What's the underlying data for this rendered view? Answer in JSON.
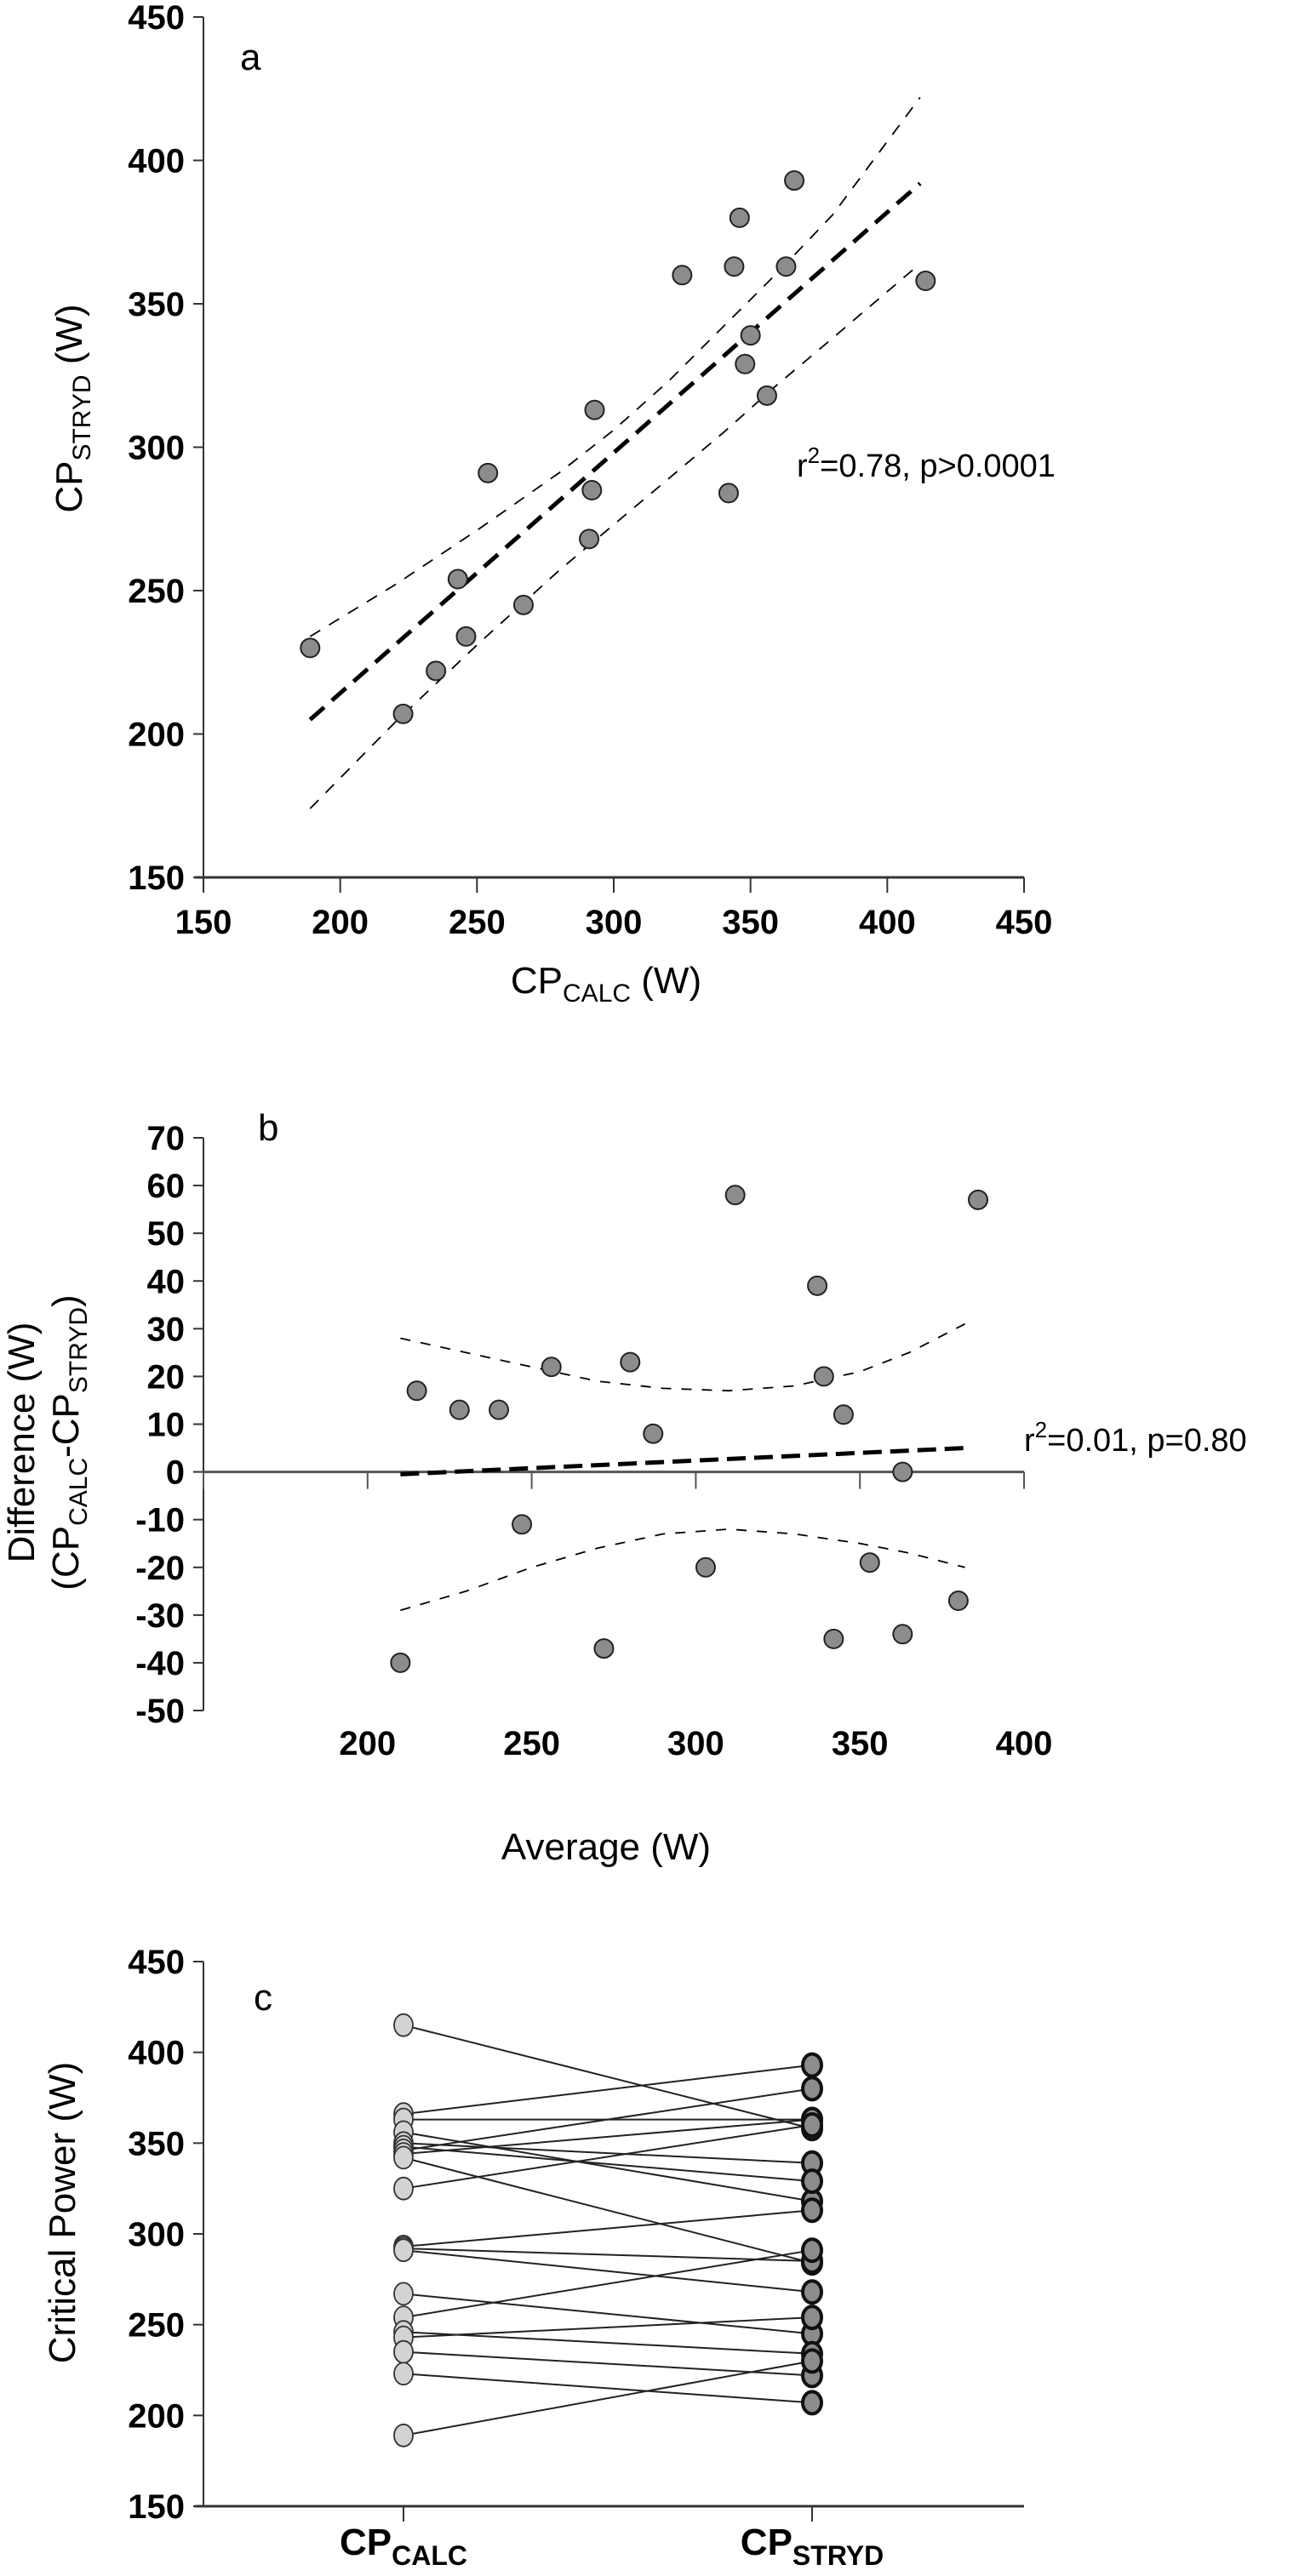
{
  "chart_data": [
    {
      "panel": "a",
      "type": "scatter",
      "title": "",
      "xlabel": "CP",
      "xlabel_sub": "CALC",
      "xlabel_suffix": " (W)",
      "ylabel": "CP",
      "ylabel_sub": "STRYD",
      "ylabel_suffix": " (W)",
      "xlim": [
        150,
        450
      ],
      "ylim": [
        150,
        450
      ],
      "xticks": [
        150,
        200,
        250,
        300,
        350,
        400,
        450
      ],
      "yticks": [
        150,
        200,
        250,
        300,
        350,
        400,
        450
      ],
      "grid": false,
      "annotation": {
        "prefix": "r",
        "sup": "2",
        "text": "=0.78, p>0.0001"
      },
      "points": [
        {
          "x": 189,
          "y": 230
        },
        {
          "x": 223,
          "y": 207
        },
        {
          "x": 235,
          "y": 222
        },
        {
          "x": 243,
          "y": 254
        },
        {
          "x": 246,
          "y": 234
        },
        {
          "x": 254,
          "y": 291
        },
        {
          "x": 267,
          "y": 245
        },
        {
          "x": 291,
          "y": 268
        },
        {
          "x": 292,
          "y": 285
        },
        {
          "x": 293,
          "y": 313
        },
        {
          "x": 325,
          "y": 360
        },
        {
          "x": 342,
          "y": 284
        },
        {
          "x": 344,
          "y": 363
        },
        {
          "x": 346,
          "y": 380
        },
        {
          "x": 348,
          "y": 329
        },
        {
          "x": 350,
          "y": 339
        },
        {
          "x": 356,
          "y": 318
        },
        {
          "x": 363,
          "y": 363
        },
        {
          "x": 366,
          "y": 393
        },
        {
          "x": 414,
          "y": 358
        }
      ],
      "regression_line": {
        "x": [
          189,
          412
        ],
        "y": [
          205,
          392
        ]
      },
      "ci_upper": {
        "x": [
          189,
          220,
          250,
          280,
          300,
          320,
          340,
          360,
          380,
          412
        ],
        "y": [
          234,
          252,
          271,
          291,
          306,
          323,
          342,
          361,
          381,
          422
        ]
      },
      "ci_lower": {
        "x": [
          189,
          220,
          250,
          280,
          300,
          320,
          340,
          360,
          380,
          412
        ],
        "y": [
          174,
          204,
          231,
          257,
          273,
          289,
          305,
          322,
          338,
          364
        ]
      }
    },
    {
      "panel": "b",
      "type": "scatter",
      "title": "",
      "xlabel": "Average (W)",
      "ylabel": "Difference (W)",
      "ylabel_line2_prefix": "(CP",
      "ylabel_line2_sub1": "CALC",
      "ylabel_line2_mid": "-CP",
      "ylabel_line2_sub2": "STRYD",
      "ylabel_line2_suffix": ")",
      "xlim": [
        150,
        400
      ],
      "ylim": [
        -50,
        70
      ],
      "xticks": [
        200,
        250,
        300,
        350,
        400
      ],
      "xtick_marks": [
        150,
        200,
        250,
        300,
        350,
        400
      ],
      "yticks": [
        -50,
        -40,
        -30,
        -20,
        -10,
        0,
        10,
        20,
        30,
        40,
        50,
        60,
        70
      ],
      "grid": false,
      "annotation": {
        "prefix": "r",
        "sup": "2",
        "text": "=0.01, p=0.80"
      },
      "points": [
        {
          "x": 210,
          "y": -40
        },
        {
          "x": 215,
          "y": 17
        },
        {
          "x": 228,
          "y": 13
        },
        {
          "x": 240,
          "y": 13
        },
        {
          "x": 247,
          "y": -11
        },
        {
          "x": 256,
          "y": 22
        },
        {
          "x": 272,
          "y": -37
        },
        {
          "x": 280,
          "y": 23
        },
        {
          "x": 287,
          "y": 8
        },
        {
          "x": 303,
          "y": -20
        },
        {
          "x": 312,
          "y": 58
        },
        {
          "x": 337,
          "y": 39
        },
        {
          "x": 339,
          "y": 20
        },
        {
          "x": 342,
          "y": -35
        },
        {
          "x": 345,
          "y": 12
        },
        {
          "x": 353,
          "y": -19
        },
        {
          "x": 363,
          "y": 0
        },
        {
          "x": 363,
          "y": -34
        },
        {
          "x": 380,
          "y": -27
        },
        {
          "x": 386,
          "y": 57
        }
      ],
      "regression_line": {
        "x": [
          210,
          382
        ],
        "y": [
          -0.5,
          5
        ]
      },
      "ci_upper": {
        "x": [
          210,
          230,
          250,
          270,
          290,
          310,
          330,
          350,
          365,
          382
        ],
        "y": [
          28,
          25,
          22,
          19,
          17.5,
          17,
          18,
          21,
          25,
          31
        ]
      },
      "ci_lower": {
        "x": [
          210,
          230,
          250,
          270,
          290,
          310,
          330,
          350,
          365,
          382
        ],
        "y": [
          -29,
          -25,
          -20,
          -16,
          -13,
          -12,
          -13,
          -15,
          -17,
          -20
        ]
      }
    },
    {
      "panel": "c",
      "type": "line",
      "title": "",
      "ylabel": "Critical Power (W)",
      "categories": [
        {
          "main": "CP",
          "sub": "CALC"
        },
        {
          "main": "CP",
          "sub": "STRYD"
        }
      ],
      "ylim": [
        150,
        450
      ],
      "yticks": [
        150,
        200,
        250,
        300,
        350,
        400,
        450
      ],
      "grid": false,
      "series_colors": {
        "calc_fill": "#d3d3d3",
        "stryd_fill": "#8c8c8c"
      },
      "pairs": [
        {
          "calc": 415,
          "stryd": 358
        },
        {
          "calc": 366,
          "stryd": 393
        },
        {
          "calc": 363,
          "stryd": 363
        },
        {
          "calc": 356,
          "stryd": 318
        },
        {
          "calc": 350,
          "stryd": 339
        },
        {
          "calc": 348,
          "stryd": 329
        },
        {
          "calc": 346,
          "stryd": 380
        },
        {
          "calc": 344,
          "stryd": 363
        },
        {
          "calc": 342,
          "stryd": 284
        },
        {
          "calc": 325,
          "stryd": 360
        },
        {
          "calc": 293,
          "stryd": 313
        },
        {
          "calc": 292,
          "stryd": 285
        },
        {
          "calc": 291,
          "stryd": 268
        },
        {
          "calc": 267,
          "stryd": 245
        },
        {
          "calc": 254,
          "stryd": 291
        },
        {
          "calc": 246,
          "stryd": 234
        },
        {
          "calc": 243,
          "stryd": 254
        },
        {
          "calc": 235,
          "stryd": 222
        },
        {
          "calc": 223,
          "stryd": 207
        },
        {
          "calc": 189,
          "stryd": 230
        }
      ]
    }
  ]
}
